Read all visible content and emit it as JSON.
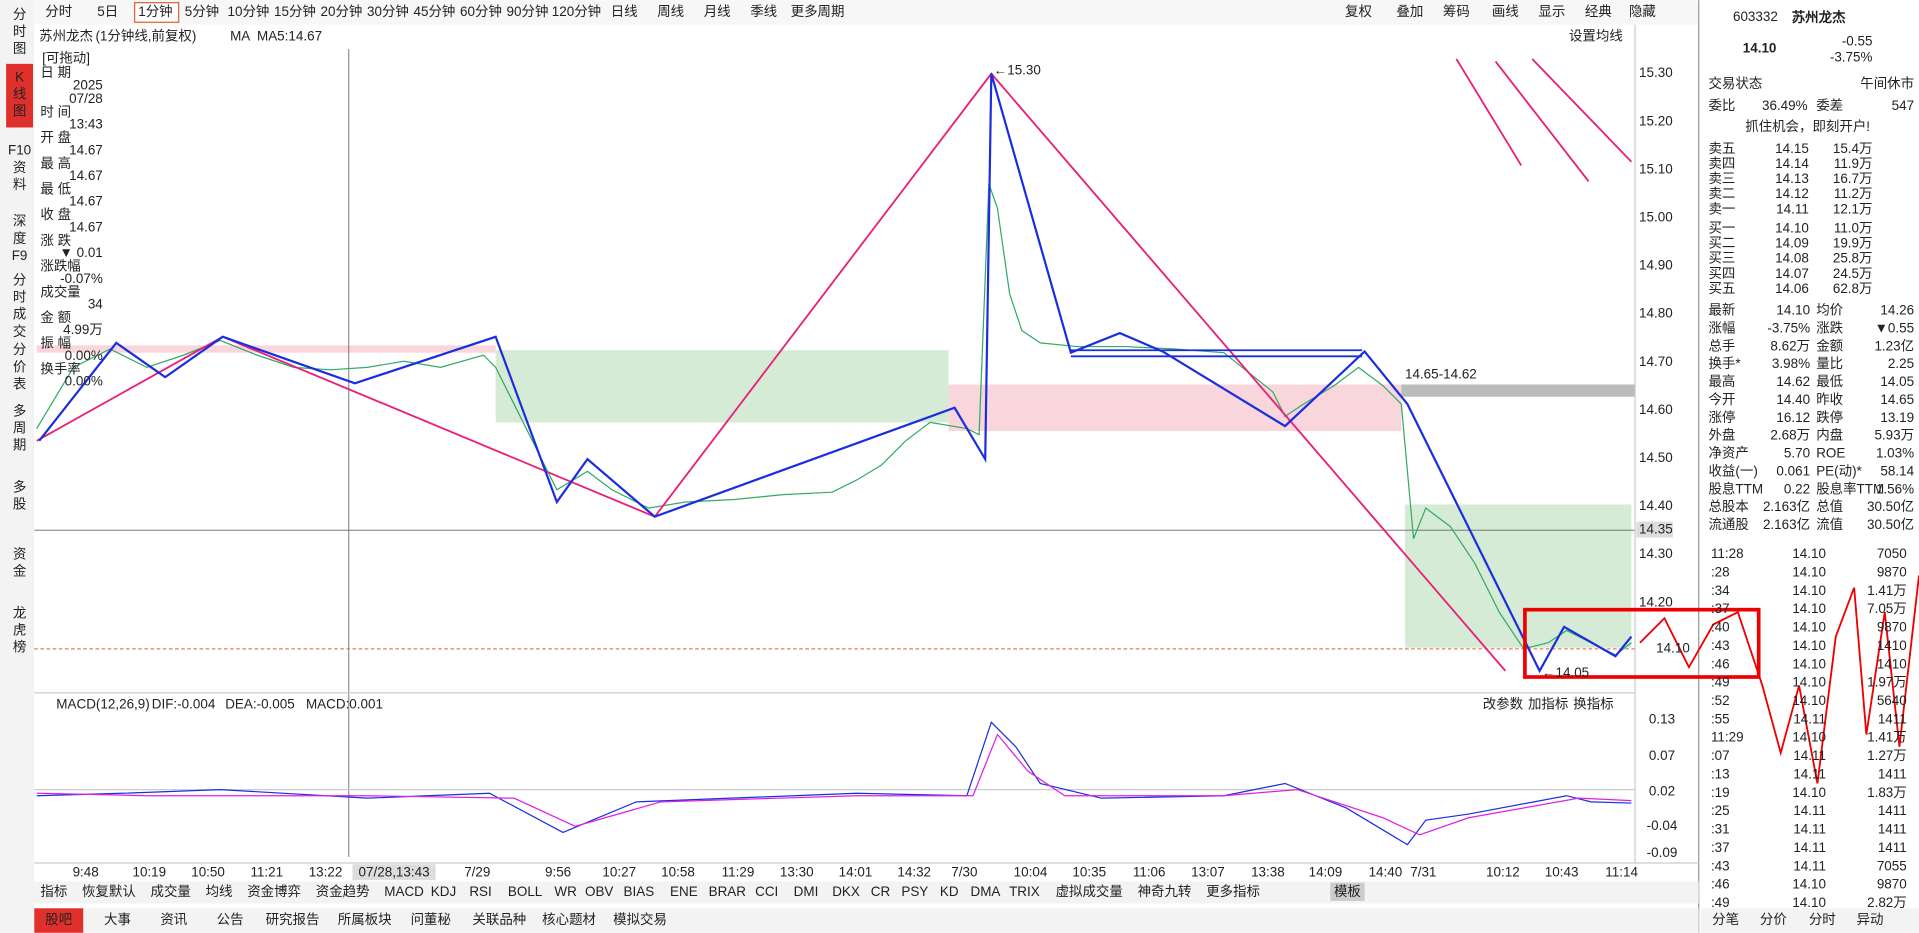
{
  "toolbar": {
    "periods": [
      "分时",
      "5日",
      "1分钟",
      "5分钟",
      "10分钟",
      "15分钟",
      "20分钟",
      "30分钟",
      "45分钟",
      "60分钟",
      "90分钟",
      "120分钟",
      "日线",
      "周线",
      "月线",
      "季线",
      "更多周期"
    ],
    "tools": [
      "复权",
      "叠加",
      "筹码",
      "画线",
      "显示",
      "经典",
      "隐藏"
    ]
  },
  "sidebar": [
    "分时图",
    "K线图",
    "F10资料",
    "深度F9",
    "分时成交",
    "分价表",
    "多周期",
    "多股",
    "资金",
    "龙虎榜"
  ],
  "chart_header": {
    "name": "苏州龙杰",
    "period": "(1分钟线,前复权)",
    "ma": "MA",
    "ma5": "MA5:14.67",
    "settings": "设置均线"
  },
  "info_panel": {
    "drag": "[可拖动]",
    "rows": [
      [
        "日 期",
        "2025",
        "07/28"
      ],
      [
        "时 间",
        "13:43"
      ],
      [
        "开 盘",
        "14.67"
      ],
      [
        "最 高",
        "14.67"
      ],
      [
        "最 低",
        "14.67"
      ],
      [
        "收 盘",
        "14.67"
      ],
      [
        "涨 跌",
        "▼ 0.01"
      ],
      [
        "涨跌幅",
        "-0.07%"
      ],
      [
        "成交量",
        "34"
      ],
      [
        "金 额",
        "4.99万"
      ],
      [
        "振 幅",
        "0.00%"
      ],
      [
        "换手率",
        "0.00%"
      ]
    ]
  },
  "price_axis": {
    "ticks": [
      "15.30",
      "15.20",
      "15.10",
      "15.00",
      "14.90",
      "14.80",
      "14.70",
      "14.60",
      "14.50",
      "14.40",
      "14.30",
      "14.20"
    ],
    "crosshair": "14.35",
    "last": "14.10"
  },
  "annotations": {
    "high": "←15.30",
    "range": "14.65-14.62",
    "low": "←14.05"
  },
  "macd": {
    "title": "MACD(12,26,9)",
    "dif": "DIF:-0.004",
    "dea": "DEA:-0.005",
    "macd": "MACD:0.001",
    "buttons": [
      "改参数",
      "加指标",
      "换指标"
    ],
    "ticks": [
      "0.13",
      "0.07",
      "0.02",
      "-0.04",
      "-0.09"
    ]
  },
  "x_axis": [
    "9:48",
    "10:19",
    "10:50",
    "11:21",
    "13:22",
    "07/28,13:43",
    "7/29",
    "9:56",
    "10:27",
    "10:58",
    "11:29",
    "13:30",
    "14:01",
    "14:32",
    "7/30",
    "10:04",
    "10:35",
    "11:06",
    "13:07",
    "13:38",
    "14:09",
    "14:40",
    "7/31",
    "10:12",
    "10:43",
    "11:14"
  ],
  "indicators": [
    "指标",
    "恢复默认",
    "成交量",
    "均线",
    "资金博弈",
    "资金趋势",
    "MACD",
    "KDJ",
    "RSI",
    "BOLL",
    "WR",
    "OBV",
    "BIAS",
    "ENE",
    "BRAR",
    "CCI",
    "DMI",
    "DKX",
    "CR",
    "PSY",
    "KD",
    "DMA",
    "TRIX",
    "虚拟成交量",
    "神奇九转",
    "更多指标",
    "模板"
  ],
  "bottom_tabs": [
    "股吧",
    "大事",
    "资讯",
    "公告",
    "研究报告",
    "所属板块",
    "问董秘",
    "关联品种",
    "核心题材",
    "模拟交易"
  ],
  "quote": {
    "code": "603332",
    "name": "苏州龙杰",
    "price": "14.10",
    "change": "-0.55",
    "change_pct": "-3.75%",
    "status_label": "交易状态",
    "status": "午间休市",
    "ratio_label": "委比",
    "ratio": "36.49%",
    "diff_label": "委差",
    "diff": "547",
    "ad": "抓住机会，即刻开户!",
    "sells": [
      [
        "卖五",
        "14.15",
        "15.4万"
      ],
      [
        "卖四",
        "14.14",
        "11.9万"
      ],
      [
        "卖三",
        "14.13",
        "16.7万"
      ],
      [
        "卖二",
        "14.12",
        "11.2万"
      ],
      [
        "卖一",
        "14.11",
        "12.1万"
      ]
    ],
    "buys": [
      [
        "买一",
        "14.10",
        "11.0万"
      ],
      [
        "买二",
        "14.09",
        "19.9万"
      ],
      [
        "买三",
        "14.08",
        "25.8万"
      ],
      [
        "买四",
        "14.07",
        "24.5万"
      ],
      [
        "买五",
        "14.06",
        "62.8万"
      ]
    ],
    "stats": [
      [
        "最新",
        "14.10",
        "均价",
        "14.26"
      ],
      [
        "涨幅",
        "-3.75%",
        "涨跌",
        "▼0.55"
      ],
      [
        "总手",
        "8.62万",
        "金额",
        "1.23亿"
      ],
      [
        "换手*",
        "3.98%",
        "量比",
        "2.25"
      ],
      [
        "最高",
        "14.62",
        "最低",
        "14.05"
      ],
      [
        "今开",
        "14.40",
        "昨收",
        "14.65"
      ],
      [
        "涨停",
        "16.12",
        "跌停",
        "13.19"
      ],
      [
        "外盘",
        "2.68万",
        "内盘",
        "5.93万"
      ],
      [
        "净资产",
        "5.70",
        "ROE",
        "1.03%"
      ],
      [
        "收益(一)",
        "0.061",
        "PE(动)*",
        "58.14"
      ],
      [
        "股息TTM",
        "0.22",
        "股息率TTM",
        "1.56%"
      ],
      [
        "总股本",
        "2.163亿",
        "总值",
        "30.50亿"
      ],
      [
        "流通股",
        "2.163亿",
        "流值",
        "30.50亿"
      ]
    ],
    "ticks": [
      [
        "11:28",
        "14.10",
        "7050"
      ],
      [
        ":28",
        "14.10",
        "9870"
      ],
      [
        ":34",
        "14.10",
        "1.41万"
      ],
      [
        ":37",
        "14.10",
        "7.05万"
      ],
      [
        ":40",
        "14.10",
        "9870"
      ],
      [
        ":43",
        "14.10",
        "1410"
      ],
      [
        ":46",
        "14.10",
        "1410"
      ],
      [
        ":49",
        "14.10",
        "1.97万"
      ],
      [
        ":52",
        "14.10",
        "5640"
      ],
      [
        ":55",
        "14.11",
        "1411"
      ],
      [
        "11:29",
        "14.10",
        "1.41万"
      ],
      [
        ":07",
        "14.11",
        "1.27万"
      ],
      [
        ":13",
        "14.11",
        "1411"
      ],
      [
        ":19",
        "14.10",
        "1.83万"
      ],
      [
        ":25",
        "14.11",
        "1411"
      ],
      [
        ":31",
        "14.11",
        "1411"
      ],
      [
        ":37",
        "14.11",
        "1411"
      ],
      [
        ":43",
        "14.11",
        "7055"
      ],
      [
        ":46",
        "14.10",
        "9870"
      ],
      [
        ":49",
        "14.10",
        "2.82万"
      ]
    ],
    "tabs": [
      "分笔",
      "分价",
      "分时",
      "异动"
    ]
  }
}
